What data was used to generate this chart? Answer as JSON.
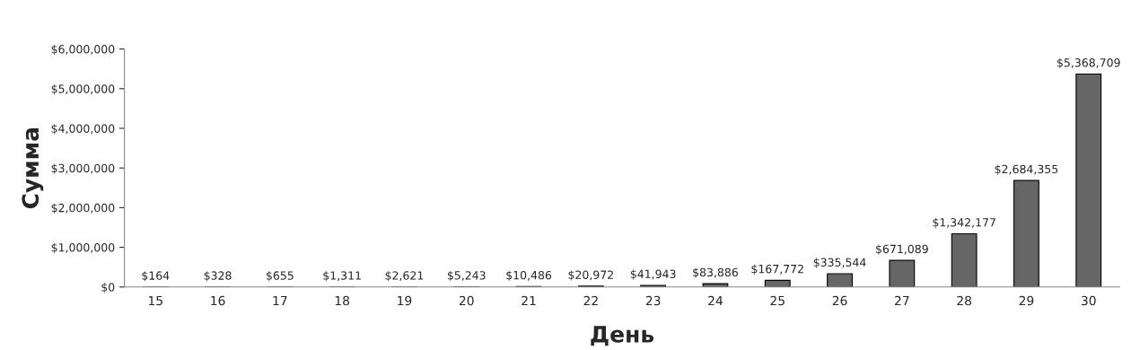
{
  "chart_data": {
    "type": "bar",
    "xlabel": "День",
    "ylabel": "Сумма",
    "categories": [
      "15",
      "16",
      "17",
      "18",
      "19",
      "20",
      "21",
      "22",
      "23",
      "24",
      "25",
      "26",
      "27",
      "28",
      "29",
      "30"
    ],
    "values": [
      164,
      328,
      655,
      1311,
      2621,
      5243,
      10486,
      20972,
      41943,
      83886,
      167772,
      335544,
      671089,
      1342177,
      2684355,
      5368709
    ],
    "value_labels": [
      "$164",
      "$328",
      "$655",
      "$1,311",
      "$2,621",
      "$5,243",
      "$10,486",
      "$20,972",
      "$41,943",
      "$83,886",
      "$167,772",
      "$335,544",
      "$671,089",
      "$1,342,177",
      "$2,684,355",
      "$5,368,709"
    ],
    "color": "#666666",
    "ylim": [
      0,
      6000000
    ],
    "yticks": [
      {
        "value": 0,
        "label": "$0"
      },
      {
        "value": 1000000,
        "label": "$1,000,000"
      },
      {
        "value": 2000000,
        "label": "$2,000,000"
      },
      {
        "value": 3000000,
        "label": "$3,000,000"
      },
      {
        "value": 4000000,
        "label": "$4,000,000"
      },
      {
        "value": 5000000,
        "label": "$5,000,000"
      },
      {
        "value": 6000000,
        "label": "$6,000,000"
      }
    ],
    "grid": false,
    "legend": false
  }
}
